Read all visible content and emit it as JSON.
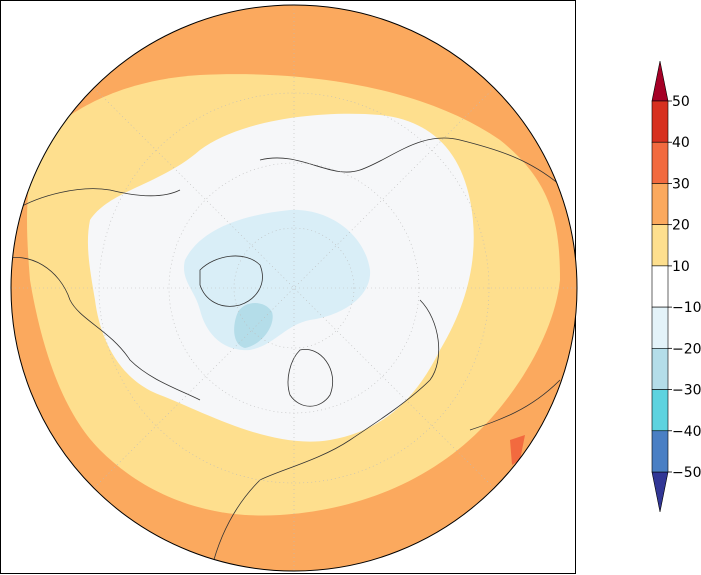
{
  "colorbar": {
    "ticks": [
      "50",
      "40",
      "30",
      "20",
      "10",
      "−10",
      "−20",
      "−30",
      "−40",
      "−50"
    ],
    "colors": [
      "#a50026",
      "#d7301f",
      "#f26a3f",
      "#fba95e",
      "#fedf8e",
      "#ffffff",
      "#e4f3f9",
      "#b4dde9",
      "#5dd3df",
      "#4a7fc4",
      "#313695"
    ]
  }
}
